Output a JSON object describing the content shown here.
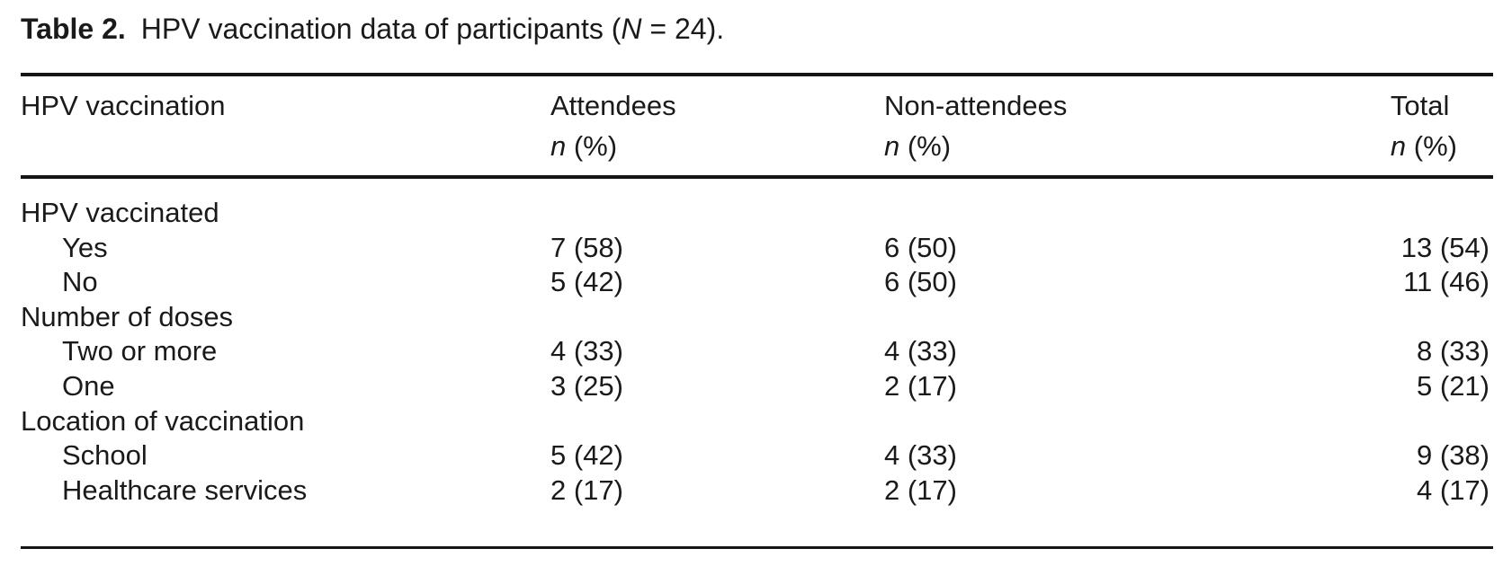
{
  "caption": {
    "label": "Table 2.",
    "text_before_n": "HPV vaccination data of participants (",
    "n_symbol": "N",
    "text_after_n": " = 24)."
  },
  "table": {
    "columns": [
      {
        "label": "HPV vaccination"
      },
      {
        "label": "Attendees",
        "unit_italic": "n",
        "unit_rest": " (%)"
      },
      {
        "label": "Non-attendees",
        "unit_italic": "n",
        "unit_rest": " (%)"
      },
      {
        "label": "Total",
        "unit_italic": "n",
        "unit_rest": " (%)"
      }
    ],
    "rows": [
      {
        "label": "HPV vaccinated",
        "attendees": "",
        "non_attendees": "",
        "total": ""
      },
      {
        "label": "Yes",
        "attendees": "7 (58)",
        "non_attendees": "6 (50)",
        "total": "13 (54)"
      },
      {
        "label": "No",
        "attendees": "5 (42)",
        "non_attendees": "6 (50)",
        "total": "11 (46)"
      },
      {
        "label": "Number of doses",
        "attendees": "",
        "non_attendees": "",
        "total": ""
      },
      {
        "label": "Two or more",
        "attendees": "4 (33)",
        "non_attendees": "4 (33)",
        "total": "8 (33)"
      },
      {
        "label": "One",
        "attendees": "3 (25)",
        "non_attendees": "2 (17)",
        "total": "5 (21)"
      },
      {
        "label": "Location of vaccination",
        "attendees": "",
        "non_attendees": "",
        "total": ""
      },
      {
        "label": "School",
        "attendees": "5 (42)",
        "non_attendees": "4 (33)",
        "total": "9 (38)"
      },
      {
        "label": "Healthcare services",
        "attendees": "2 (17)",
        "non_attendees": "2 (17)",
        "total": "4 (17)"
      }
    ]
  }
}
